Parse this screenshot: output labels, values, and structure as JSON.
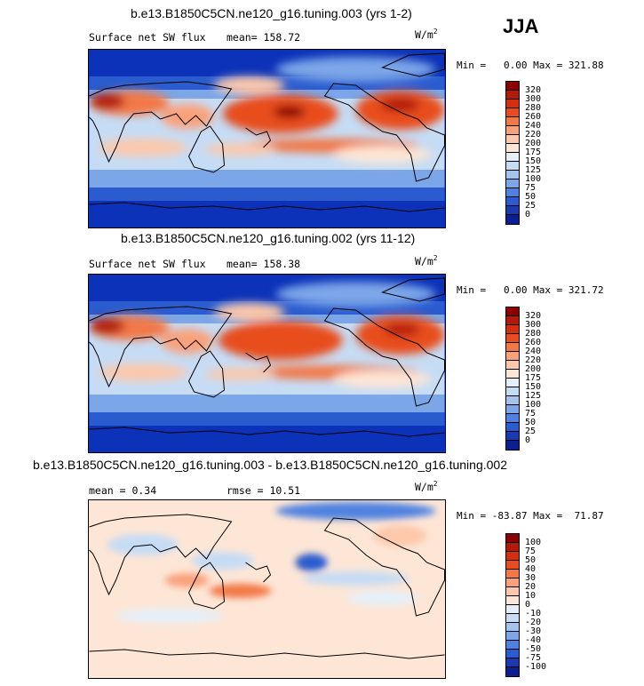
{
  "season": "JJA",
  "units": "W/m",
  "units_exp": "2",
  "panels": [
    {
      "title": "b.e13.B1850C5CN.ne120_g16.tuning.003 (yrs 1-2)",
      "variable": "Surface net SW flux",
      "mean_text": "mean= 158.72",
      "rmse_text": "",
      "minmax_text": "Min =   0.00 Max = 321.88",
      "colorbar": {
        "labels": [
          "320",
          "300",
          "280",
          "260",
          "240",
          "220",
          "200",
          "175",
          "150",
          "125",
          "100",
          "75",
          "50",
          "25",
          "0"
        ],
        "colors": [
          "#8b0000",
          "#b21a0a",
          "#d4300e",
          "#e84d1f",
          "#f27846",
          "#f9a17a",
          "#fdc8ab",
          "#fde6d6",
          "#e4effa",
          "#c6dcf5",
          "#a4c4ee",
          "#7ba6e8",
          "#4f82e0",
          "#2a5ccf",
          "#1a3bb0",
          "#0b1f8e"
        ]
      }
    },
    {
      "title": "b.e13.B1850C5CN.ne120_g16.tuning.002 (yrs 11-12)",
      "variable": "Surface net SW flux",
      "mean_text": "mean= 158.38",
      "rmse_text": "",
      "minmax_text": "Min =   0.00 Max = 321.72",
      "colorbar": {
        "labels": [
          "320",
          "300",
          "280",
          "260",
          "240",
          "220",
          "200",
          "175",
          "150",
          "125",
          "100",
          "75",
          "50",
          "25",
          "0"
        ],
        "colors": [
          "#8b0000",
          "#b21a0a",
          "#d4300e",
          "#e84d1f",
          "#f27846",
          "#f9a17a",
          "#fdc8ab",
          "#fde6d6",
          "#e4effa",
          "#c6dcf5",
          "#a4c4ee",
          "#7ba6e8",
          "#4f82e0",
          "#2a5ccf",
          "#1a3bb0",
          "#0b1f8e"
        ]
      }
    },
    {
      "title": "b.e13.B1850C5CN.ne120_g16.tuning.003 - b.e13.B1850C5CN.ne120_g16.tuning.002",
      "variable": "",
      "mean_text": "mean =   0.34",
      "rmse_text": "rmse =  10.51",
      "minmax_text": "Min = -83.87 Max =  71.87",
      "colorbar": {
        "labels": [
          "100",
          "75",
          "50",
          "40",
          "30",
          "20",
          "10",
          "0",
          "-10",
          "-20",
          "-30",
          "-40",
          "-50",
          "-75",
          "-100"
        ],
        "colors": [
          "#8b0000",
          "#b21a0a",
          "#d4300e",
          "#e84d1f",
          "#f27846",
          "#f9a17a",
          "#fdc8ab",
          "#fde6d6",
          "#e4effa",
          "#c6dcf5",
          "#a4c4ee",
          "#7ba6e8",
          "#4f82e0",
          "#2a5ccf",
          "#1a3bb0",
          "#0b1f8e"
        ]
      }
    }
  ],
  "chart_data": [
    {
      "type": "heatmap",
      "title": "b.e13.B1850C5CN.ne120_g16.tuning.003 (yrs 1-2)",
      "subtitle": "Surface net SW flux",
      "units": "W/m2",
      "mean": 158.72,
      "min": 0.0,
      "max": 321.88,
      "colorbar_levels": [
        0,
        25,
        50,
        75,
        100,
        125,
        150,
        175,
        200,
        220,
        240,
        260,
        280,
        300,
        320
      ]
    },
    {
      "type": "heatmap",
      "title": "b.e13.B1850C5CN.ne120_g16.tuning.002 (yrs 11-12)",
      "subtitle": "Surface net SW flux",
      "units": "W/m2",
      "mean": 158.38,
      "min": 0.0,
      "max": 321.72,
      "colorbar_levels": [
        0,
        25,
        50,
        75,
        100,
        125,
        150,
        175,
        200,
        220,
        240,
        260,
        280,
        300,
        320
      ]
    },
    {
      "type": "heatmap",
      "title": "b.e13.B1850C5CN.ne120_g16.tuning.003 - b.e13.B1850C5CN.ne120_g16.tuning.002",
      "units": "W/m2",
      "mean": 0.34,
      "rmse": 10.51,
      "min": -83.87,
      "max": 71.87,
      "colorbar_levels": [
        -100,
        -75,
        -50,
        -40,
        -30,
        -20,
        -10,
        0,
        10,
        20,
        30,
        40,
        50,
        75,
        100
      ]
    }
  ]
}
